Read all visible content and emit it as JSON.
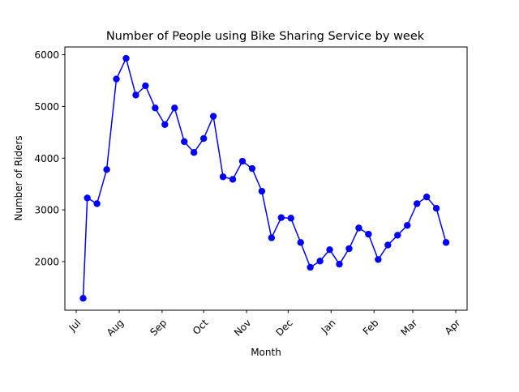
{
  "chart_data": {
    "type": "line",
    "title": "Number of People using Bike Sharing Service by week",
    "xlabel": "Month",
    "ylabel": "Number of Riders",
    "x_ticks": [
      "Jul",
      "Aug",
      "Sep",
      "Oct",
      "Nov",
      "Dec",
      "Jan",
      "Feb",
      "Mar",
      "Apr"
    ],
    "y_ticks": [
      2000,
      3000,
      4000,
      5000,
      6000
    ],
    "ylim": [
      1060,
      6150
    ],
    "x_tick_rotation_deg": 45,
    "grid": false,
    "legend": "none",
    "marker": "circle",
    "line_color": "#0000ff",
    "series": [
      {
        "x": [
          "2012-07-06",
          "2012-07-09",
          "2012-07-16",
          "2012-07-23",
          "2012-07-30",
          "2012-08-06",
          "2012-08-13",
          "2012-08-20",
          "2012-08-27",
          "2012-09-03",
          "2012-09-10",
          "2012-09-17",
          "2012-09-24",
          "2012-10-01",
          "2012-10-08",
          "2012-10-15",
          "2012-10-22",
          "2012-10-29",
          "2012-11-05",
          "2012-11-12",
          "2012-11-19",
          "2012-11-26",
          "2012-12-03",
          "2012-12-10",
          "2012-12-17",
          "2012-12-24",
          "2012-12-31",
          "2013-01-07",
          "2013-01-14",
          "2013-01-21",
          "2013-01-28",
          "2013-02-04",
          "2013-02-11",
          "2013-02-18",
          "2013-02-25",
          "2013-03-04",
          "2013-03-11",
          "2013-03-18",
          "2013-03-25"
        ],
        "values": [
          1290,
          3230,
          3120,
          3780,
          5530,
          5930,
          5220,
          5400,
          4970,
          4650,
          4970,
          4320,
          4110,
          4380,
          4810,
          3640,
          3590,
          3940,
          3800,
          3360,
          2460,
          2850,
          2840,
          2370,
          1890,
          2010,
          2230,
          1950,
          2250,
          2650,
          2530,
          2040,
          2320,
          2510,
          2700,
          3120,
          3250,
          3030,
          2370
        ]
      }
    ]
  }
}
